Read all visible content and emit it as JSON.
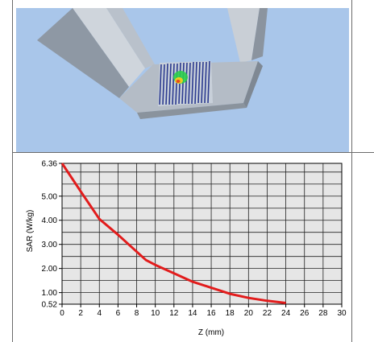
{
  "viewer": {
    "icon": "3d-sar-probe-scan-view"
  },
  "chart_data": {
    "type": "line",
    "xlabel": "Z (mm)",
    "ylabel": "SAR (W/kg)",
    "xlim": [
      0,
      30
    ],
    "ylim": [
      0.52,
      6.36
    ],
    "x_ticks": [
      "0",
      "2",
      "4",
      "6",
      "8",
      "10",
      "12",
      "14",
      "16",
      "18",
      "20",
      "22",
      "24",
      "26",
      "28",
      "30"
    ],
    "y_ticks": [
      "0.52",
      "1.00",
      "2.00",
      "3.00",
      "4.00",
      "5.00",
      "6.36"
    ],
    "grid": true,
    "series": [
      {
        "color": "#e21c1c",
        "x": [
          0,
          2,
          4,
          6,
          8,
          9,
          10,
          12,
          14,
          16,
          18,
          20,
          22,
          24
        ],
        "y": [
          6.36,
          5.2,
          4.05,
          3.4,
          2.7,
          2.35,
          2.15,
          1.8,
          1.45,
          1.2,
          0.95,
          0.78,
          0.66,
          0.57
        ]
      }
    ]
  }
}
